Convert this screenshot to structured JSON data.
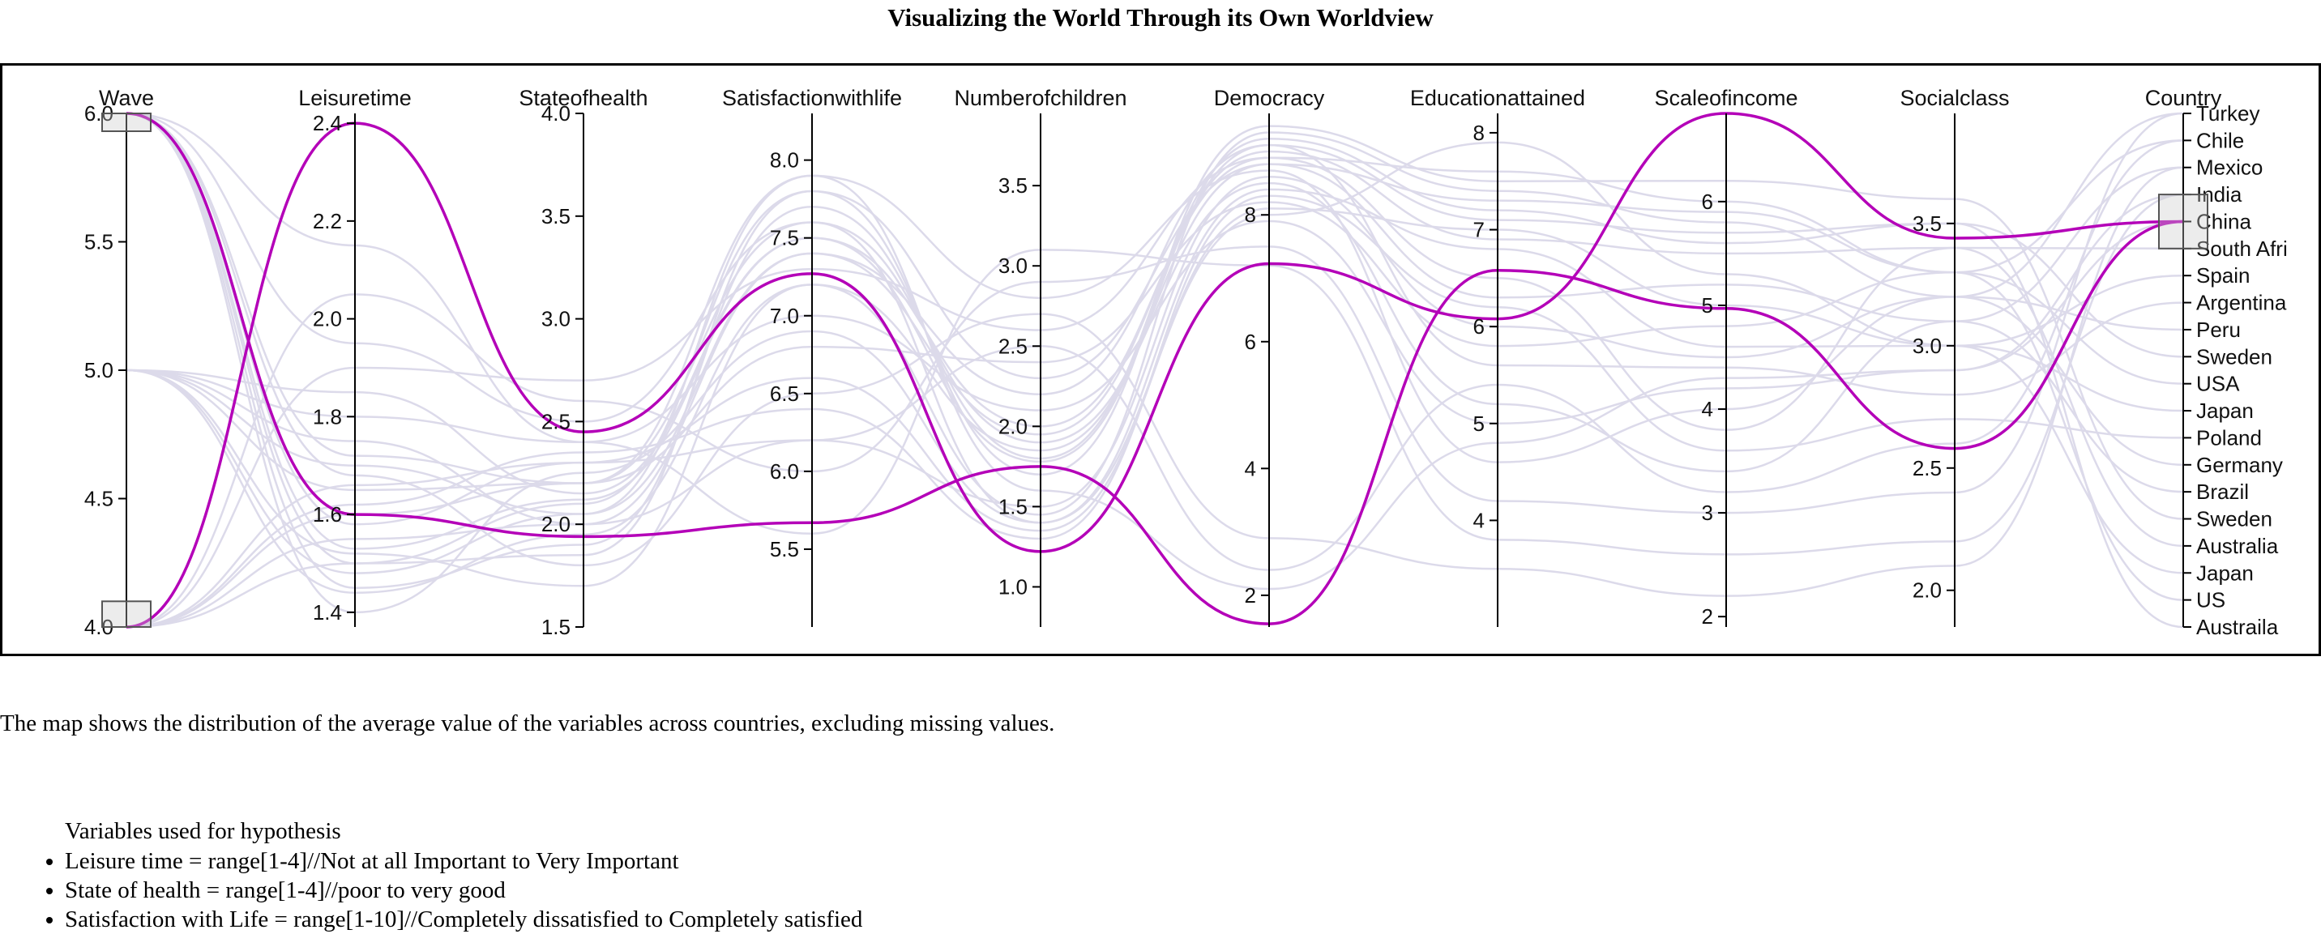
{
  "title": "Visualizing the World Through its Own Worldview",
  "description": "The map shows the distribution of the average value of the variables across countries, excluding missing values.",
  "variables": {
    "heading": "Variables used for hypothesis",
    "items": [
      "Leisure time = range[1-4]//Not at all Important to Very Important",
      "State of health = range[1-4]//poor to very good",
      "Satisfaction with Life = range[1-10]//Completely dissatisfied to Completely satisfied"
    ]
  },
  "colors": {
    "highlight": "#b400b8",
    "background_lines": "#dcdaea",
    "axis": "#000000",
    "frame": "#000000"
  },
  "chart_data": {
    "type": "parallel-coordinates",
    "grid": false,
    "axes": [
      {
        "name": "Wave",
        "domain": [
          4.0,
          6.0
        ],
        "ticks": [
          4.0,
          4.5,
          5.0,
          5.5,
          6.0
        ],
        "decimals": 1,
        "brush": [
          [
            5.95,
            6.0
          ],
          [
            4.0,
            4.1
          ]
        ]
      },
      {
        "name": "Leisuretime",
        "domain": [
          1.37,
          2.42
        ],
        "ticks": [
          1.4,
          1.6,
          1.8,
          2.0,
          2.2,
          2.4
        ],
        "decimals": 1
      },
      {
        "name": "Stateofhealth",
        "domain": [
          1.5,
          4.0
        ],
        "ticks": [
          1.5,
          2.0,
          2.5,
          3.0,
          3.5,
          4.0
        ],
        "decimals": 1
      },
      {
        "name": "Satisfactionwithlife",
        "domain": [
          5.0,
          8.3
        ],
        "ticks": [
          5.5,
          6.0,
          6.5,
          7.0,
          7.5,
          8.0
        ],
        "decimals": 1
      },
      {
        "name": "Numberofchildren",
        "domain": [
          0.75,
          3.95
        ],
        "ticks": [
          1.0,
          1.5,
          2.0,
          2.5,
          3.0,
          3.5
        ],
        "decimals": 1
      },
      {
        "name": "Democracy",
        "domain": [
          1.5,
          9.6
        ],
        "ticks": [
          2,
          4,
          6,
          8
        ],
        "decimals": 0
      },
      {
        "name": "Educationattained",
        "domain": [
          2.9,
          8.2
        ],
        "ticks": [
          4,
          5,
          6,
          7,
          8
        ],
        "decimals": 0
      },
      {
        "name": "Scaleofincome",
        "domain": [
          1.9,
          6.85
        ],
        "ticks": [
          2,
          3,
          4,
          5,
          6
        ],
        "decimals": 0
      },
      {
        "name": "Socialclass",
        "domain": [
          1.85,
          3.95
        ],
        "ticks": [
          2.0,
          2.5,
          3.0,
          3.5
        ],
        "decimals": 1
      },
      {
        "name": "Country",
        "categorical": true,
        "categories": [
          "Turkey",
          "Chile",
          "Mexico",
          "India",
          "China",
          "South Afri",
          "Spain",
          "Argentina",
          "Peru",
          "Sweden",
          "USA",
          "Japan",
          "Poland",
          "Germany",
          "Brazil",
          "Sweden",
          "Australia",
          "Japan",
          "US",
          "Austraila"
        ],
        "brush": [
          [
            3,
            5
          ]
        ]
      }
    ],
    "highlighted": [
      [
        6.0,
        1.6,
        1.94,
        5.67,
        1.75,
        1.55,
        6.58,
        4.97,
        2.58,
        4
      ],
      [
        4.0,
        2.4,
        2.45,
        7.27,
        1.22,
        7.23,
        6.08,
        6.85,
        3.44,
        4
      ]
    ],
    "background": [
      [
        6.0,
        1.58,
        2.3,
        6.2,
        1.5,
        8.6,
        6.0,
        4.5,
        3.2,
        0
      ],
      [
        6.0,
        1.72,
        2.2,
        6.8,
        2.4,
        8.2,
        5.8,
        4.8,
        3.3,
        1
      ],
      [
        6.0,
        1.5,
        2.1,
        7.8,
        2.3,
        8.8,
        6.3,
        5.2,
        3.1,
        2
      ],
      [
        5.0,
        1.8,
        2.4,
        7.0,
        2.1,
        7.9,
        5.0,
        4.2,
        2.9,
        3
      ],
      [
        4.0,
        1.9,
        2.7,
        7.3,
        2.6,
        8.9,
        6.5,
        3.8,
        3.4,
        5
      ],
      [
        5.0,
        1.65,
        2.2,
        7.6,
        1.4,
        8.4,
        6.8,
        4.6,
        3.0,
        6
      ],
      [
        4.0,
        1.55,
        2.0,
        7.4,
        2.2,
        9.1,
        5.6,
        4.4,
        2.8,
        7
      ],
      [
        5.0,
        1.7,
        2.05,
        7.9,
        2.8,
        8.7,
        4.6,
        4.0,
        3.2,
        8
      ],
      [
        6.0,
        1.45,
        1.9,
        7.7,
        1.8,
        9.2,
        7.2,
        5.6,
        3.5,
        9
      ],
      [
        5.0,
        1.85,
        2.15,
        7.5,
        2.0,
        8.9,
        7.6,
        6.0,
        3.3,
        10
      ],
      [
        6.0,
        1.4,
        2.25,
        6.9,
        1.4,
        8.0,
        7.9,
        5.3,
        3.0,
        11
      ],
      [
        4.0,
        1.62,
        2.35,
        6.4,
        1.3,
        8.3,
        6.2,
        3.6,
        2.7,
        12
      ],
      [
        5.0,
        1.52,
        1.7,
        7.2,
        1.45,
        9.3,
        7.4,
        5.8,
        3.2,
        13
      ],
      [
        6.0,
        1.95,
        2.5,
        7.6,
        1.9,
        8.5,
        5.2,
        3.4,
        3.1,
        14
      ],
      [
        4.0,
        1.5,
        1.85,
        7.8,
        1.7,
        9.4,
        7.5,
        6.2,
        3.6,
        15
      ],
      [
        5.0,
        1.48,
        2.05,
        7.4,
        1.95,
        9.0,
        6.9,
        5.5,
        3.4,
        16
      ],
      [
        4.0,
        1.66,
        2.3,
        6.6,
        1.35,
        8.1,
        7.0,
        5.0,
        3.0,
        17
      ],
      [
        5.0,
        1.44,
        1.95,
        7.2,
        1.85,
        8.8,
        7.3,
        5.9,
        3.3,
        18
      ],
      [
        6.0,
        1.53,
        2.12,
        7.5,
        1.78,
        9.1,
        7.1,
        5.7,
        3.5,
        19
      ],
      [
        4.0,
        2.05,
        2.6,
        6.0,
        2.9,
        7.5,
        4.2,
        3.0,
        2.4,
        0
      ],
      [
        6.0,
        2.15,
        2.4,
        5.6,
        3.1,
        7.2,
        3.8,
        2.6,
        2.2,
        3
      ],
      [
        5.0,
        1.75,
        2.0,
        6.2,
        2.5,
        2.4,
        5.4,
        3.2,
        2.6,
        1
      ],
      [
        4.0,
        1.6,
        2.2,
        7.9,
        1.6,
        2.1,
        4.8,
        4.3,
        2.9,
        4
      ],
      [
        6.0,
        1.68,
        1.8,
        6.5,
        2.7,
        2.9,
        3.5,
        2.2,
        2.1,
        2
      ]
    ]
  }
}
